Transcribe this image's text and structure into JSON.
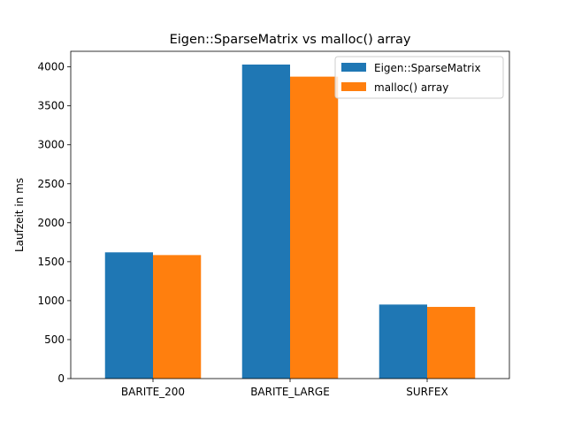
{
  "chart_data": {
    "type": "bar",
    "title": "Eigen::SparseMatrix vs malloc() array",
    "xlabel": "",
    "ylabel": "Laufzeit in ms",
    "categories": [
      "BARITE_200",
      "BARITE_LARGE",
      "SURFEX"
    ],
    "series": [
      {
        "name": "Eigen::SparseMatrix",
        "color": "#1f77b4",
        "values": [
          1620,
          4030,
          950
        ]
      },
      {
        "name": "malloc() array",
        "color": "#ff7f0e",
        "values": [
          1585,
          3875,
          920
        ]
      }
    ],
    "ylim": [
      0,
      4200
    ],
    "yticks": [
      0,
      500,
      1000,
      1500,
      2000,
      2500,
      3000,
      3500,
      4000
    ],
    "grid": false,
    "legend_position": "top-right"
  }
}
